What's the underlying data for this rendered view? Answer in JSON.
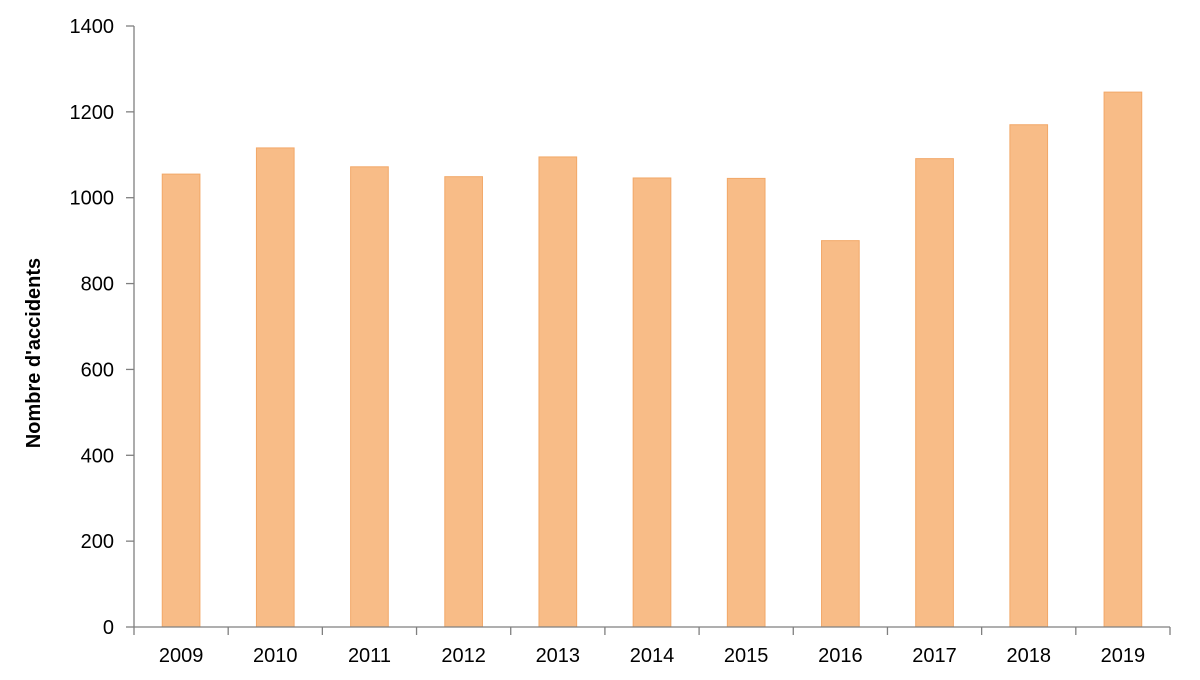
{
  "chart_data": {
    "type": "bar",
    "title": "",
    "xlabel": "",
    "ylabel": "Nombre d'accidents",
    "categories": [
      "2009",
      "2010",
      "2011",
      "2012",
      "2013",
      "2014",
      "2015",
      "2016",
      "2017",
      "2018",
      "2019"
    ],
    "values": [
      1055,
      1116,
      1072,
      1049,
      1095,
      1046,
      1045,
      900,
      1091,
      1170,
      1246
    ],
    "ylim": [
      0,
      1400
    ],
    "yticks": [
      0,
      200,
      400,
      600,
      800,
      1000,
      1200,
      1400
    ],
    "grid": false,
    "legend": "none",
    "colors": {
      "bar_fill": "#f8bc87",
      "bar_stroke": "#f2a868",
      "axis": "#7f7f7f"
    }
  }
}
